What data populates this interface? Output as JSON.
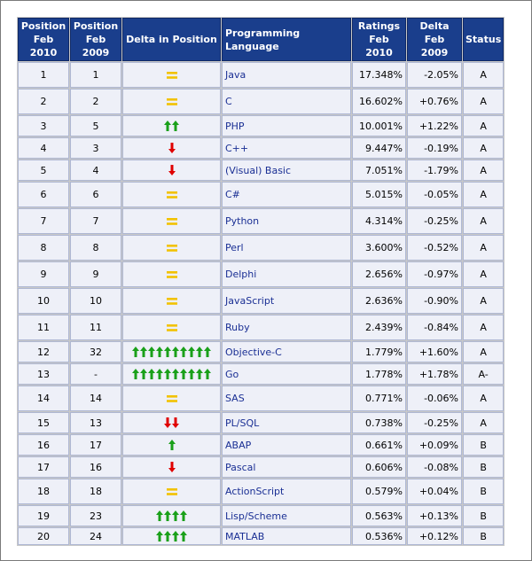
{
  "colors": {
    "header_bg": "#1a3e8c",
    "header_text": "#ffffff",
    "cell_bg": "#eef0f8",
    "language_link": "#1a2f94",
    "arrow_up": "#1aa01a",
    "arrow_down": "#e00000",
    "equal_sign": "#f2c200"
  },
  "headers": {
    "pos_now_line1": "Position",
    "pos_now_line2": "Feb 2010",
    "pos_prev_line1": "Position",
    "pos_prev_line2": "Feb 2009",
    "delta_pos": "Delta in Position",
    "language": "Programming Language",
    "ratings_line1": "Ratings",
    "ratings_line2": "Feb 2010",
    "delta_line1": "Delta",
    "delta_line2": "Feb 2009",
    "status": "Status"
  },
  "rows": [
    {
      "pos": "1",
      "prev": "1",
      "change": "equal",
      "arrows": 0,
      "lang": "Java",
      "rating": "17.348%",
      "delta": "-2.05%",
      "status": "A"
    },
    {
      "pos": "2",
      "prev": "2",
      "change": "equal",
      "arrows": 0,
      "lang": "C",
      "rating": "16.602%",
      "delta": "+0.76%",
      "status": "A"
    },
    {
      "pos": "3",
      "prev": "5",
      "change": "up",
      "arrows": 2,
      "lang": "PHP",
      "rating": "10.001%",
      "delta": "+1.22%",
      "status": "A"
    },
    {
      "pos": "4",
      "prev": "3",
      "change": "down",
      "arrows": 1,
      "lang": "C++",
      "rating": "9.447%",
      "delta": "-0.19%",
      "status": "A"
    },
    {
      "pos": "5",
      "prev": "4",
      "change": "down",
      "arrows": 1,
      "lang": "(Visual) Basic",
      "rating": "7.051%",
      "delta": "-1.79%",
      "status": "A"
    },
    {
      "pos": "6",
      "prev": "6",
      "change": "equal",
      "arrows": 0,
      "lang": "C#",
      "rating": "5.015%",
      "delta": "-0.05%",
      "status": "A"
    },
    {
      "pos": "7",
      "prev": "7",
      "change": "equal",
      "arrows": 0,
      "lang": "Python",
      "rating": "4.314%",
      "delta": "-0.25%",
      "status": "A"
    },
    {
      "pos": "8",
      "prev": "8",
      "change": "equal",
      "arrows": 0,
      "lang": "Perl",
      "rating": "3.600%",
      "delta": "-0.52%",
      "status": "A"
    },
    {
      "pos": "9",
      "prev": "9",
      "change": "equal",
      "arrows": 0,
      "lang": "Delphi",
      "rating": "2.656%",
      "delta": "-0.97%",
      "status": "A"
    },
    {
      "pos": "10",
      "prev": "10",
      "change": "equal",
      "arrows": 0,
      "lang": "JavaScript",
      "rating": "2.636%",
      "delta": "-0.90%",
      "status": "A"
    },
    {
      "pos": "11",
      "prev": "11",
      "change": "equal",
      "arrows": 0,
      "lang": "Ruby",
      "rating": "2.439%",
      "delta": "-0.84%",
      "status": "A"
    },
    {
      "pos": "12",
      "prev": "32",
      "change": "up",
      "arrows": 10,
      "lang": "Objective-C",
      "rating": "1.779%",
      "delta": "+1.60%",
      "status": "A"
    },
    {
      "pos": "13",
      "prev": "-",
      "change": "up",
      "arrows": 10,
      "lang": "Go",
      "rating": "1.778%",
      "delta": "+1.78%",
      "status": "A-"
    },
    {
      "pos": "14",
      "prev": "14",
      "change": "equal",
      "arrows": 0,
      "lang": "SAS",
      "rating": "0.771%",
      "delta": "-0.06%",
      "status": "A"
    },
    {
      "pos": "15",
      "prev": "13",
      "change": "down",
      "arrows": 2,
      "lang": "PL/SQL",
      "rating": "0.738%",
      "delta": "-0.25%",
      "status": "A"
    },
    {
      "pos": "16",
      "prev": "17",
      "change": "up",
      "arrows": 1,
      "lang": "ABAP",
      "rating": "0.661%",
      "delta": "+0.09%",
      "status": "B"
    },
    {
      "pos": "17",
      "prev": "16",
      "change": "down",
      "arrows": 1,
      "lang": "Pascal",
      "rating": "0.606%",
      "delta": "-0.08%",
      "status": "B"
    },
    {
      "pos": "18",
      "prev": "18",
      "change": "equal",
      "arrows": 0,
      "lang": "ActionScript",
      "rating": "0.579%",
      "delta": "+0.04%",
      "status": "B"
    },
    {
      "pos": "19",
      "prev": "23",
      "change": "up",
      "arrows": 4,
      "lang": "Lisp/Scheme",
      "rating": "0.563%",
      "delta": "+0.13%",
      "status": "B"
    },
    {
      "pos": "20",
      "prev": "24",
      "change": "up",
      "arrows": 4,
      "lang": "MATLAB",
      "rating": "0.536%",
      "delta": "+0.12%",
      "status": "B"
    }
  ]
}
